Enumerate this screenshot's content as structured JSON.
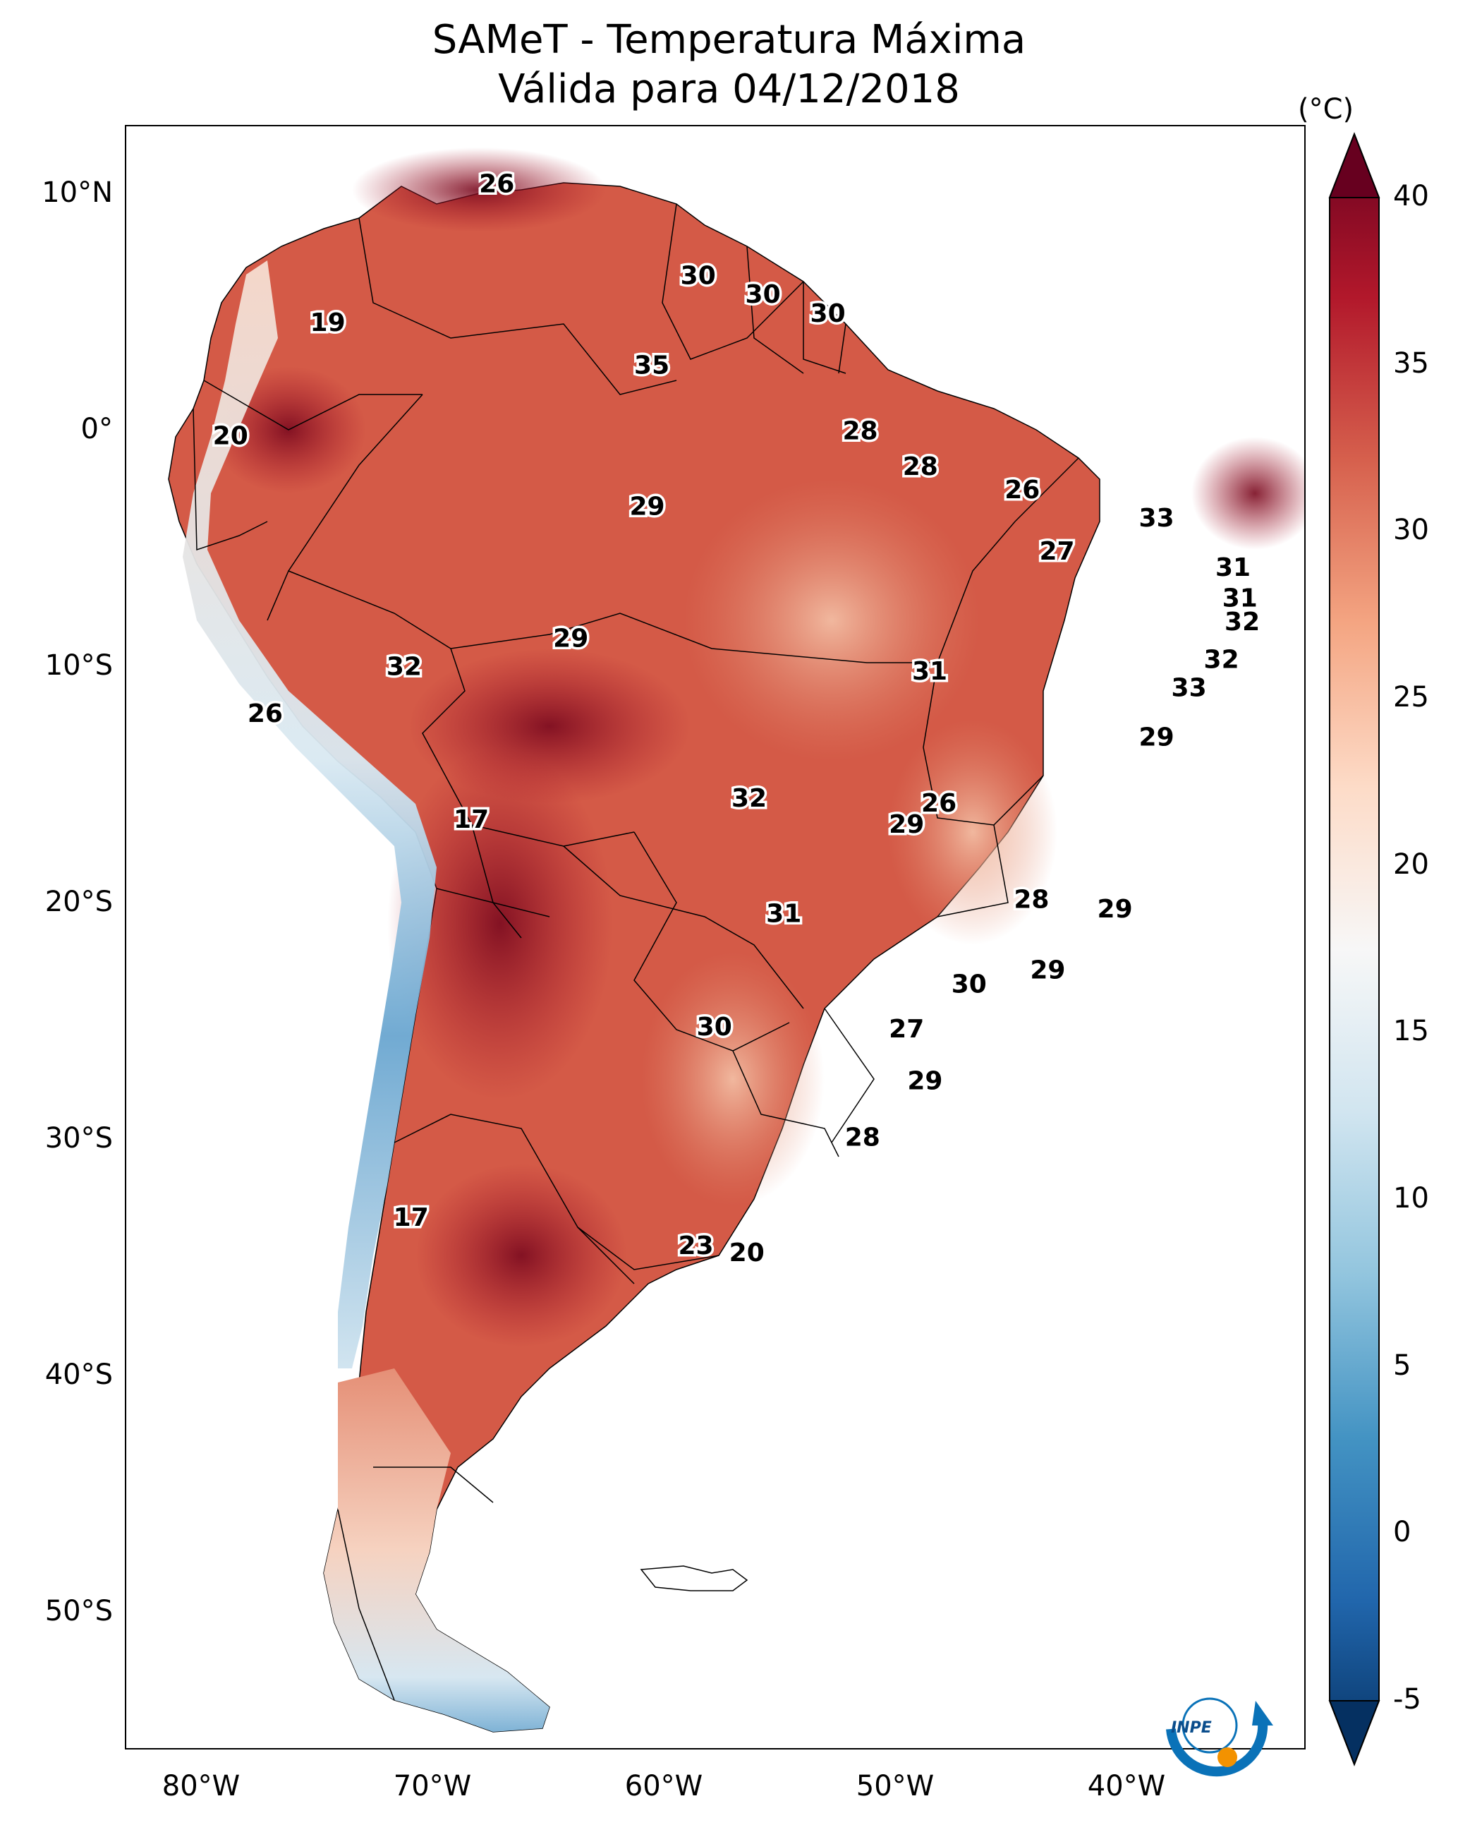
{
  "title": {
    "line1": "SAMeT - Temperatura Máxima",
    "line2": "Válida para 04/12/2018"
  },
  "map": {
    "region": "South America",
    "extent_lon": [
      -83,
      -32
    ],
    "extent_lat": [
      -56,
      13
    ],
    "lat_ticks": [
      "10°N",
      "0°",
      "10°S",
      "20°S",
      "30°S",
      "40°S",
      "50°S"
    ],
    "lon_ticks": [
      "80°W",
      "70°W",
      "60°W",
      "50°W",
      "40°W"
    ],
    "point_labels": [
      {
        "text": "26",
        "lon": -67.0,
        "lat": 10.5
      },
      {
        "text": "30",
        "lon": -58.3,
        "lat": 6.6
      },
      {
        "text": "30",
        "lon": -55.5,
        "lat": 5.8
      },
      {
        "text": "30",
        "lon": -52.7,
        "lat": 5.0
      },
      {
        "text": "19",
        "lon": -74.3,
        "lat": 4.6
      },
      {
        "text": "35",
        "lon": -60.3,
        "lat": 2.8
      },
      {
        "text": "28",
        "lon": -51.3,
        "lat": 0.0
      },
      {
        "text": "20",
        "lon": -78.5,
        "lat": -0.2
      },
      {
        "text": "28",
        "lon": -48.7,
        "lat": -1.5
      },
      {
        "text": "26",
        "lon": -44.3,
        "lat": -2.5
      },
      {
        "text": "29",
        "lon": -60.5,
        "lat": -3.2
      },
      {
        "text": "33",
        "lon": -38.5,
        "lat": -3.7
      },
      {
        "text": "27",
        "lon": -42.8,
        "lat": -5.1
      },
      {
        "text": "31",
        "lon": -35.2,
        "lat": -5.8
      },
      {
        "text": "31",
        "lon": -34.9,
        "lat": -7.1
      },
      {
        "text": "32",
        "lon": -34.8,
        "lat": -8.1
      },
      {
        "text": "29",
        "lon": -63.8,
        "lat": -8.8
      },
      {
        "text": "32",
        "lon": -71.0,
        "lat": -10.0
      },
      {
        "text": "32",
        "lon": -35.7,
        "lat": -9.7
      },
      {
        "text": "31",
        "lon": -48.3,
        "lat": -10.2
      },
      {
        "text": "33",
        "lon": -37.1,
        "lat": -10.9
      },
      {
        "text": "26",
        "lon": -77.0,
        "lat": -12.0
      },
      {
        "text": "29",
        "lon": -38.5,
        "lat": -13.0
      },
      {
        "text": "32",
        "lon": -56.1,
        "lat": -15.6
      },
      {
        "text": "26",
        "lon": -47.9,
        "lat": -15.8
      },
      {
        "text": "17",
        "lon": -68.1,
        "lat": -16.5
      },
      {
        "text": "29",
        "lon": -49.3,
        "lat": -16.7
      },
      {
        "text": "28",
        "lon": -43.9,
        "lat": -19.9
      },
      {
        "text": "29",
        "lon": -40.3,
        "lat": -20.3
      },
      {
        "text": "31",
        "lon": -54.6,
        "lat": -20.5
      },
      {
        "text": "29",
        "lon": -43.2,
        "lat": -22.9
      },
      {
        "text": "30",
        "lon": -46.6,
        "lat": -23.5
      },
      {
        "text": "30",
        "lon": -57.6,
        "lat": -25.3
      },
      {
        "text": "27",
        "lon": -49.3,
        "lat": -25.4
      },
      {
        "text": "29",
        "lon": -48.5,
        "lat": -27.6
      },
      {
        "text": "28",
        "lon": -51.2,
        "lat": -30.0
      },
      {
        "text": "17",
        "lon": -70.7,
        "lat": -33.4
      },
      {
        "text": "23",
        "lon": -58.4,
        "lat": -34.6
      },
      {
        "text": "20",
        "lon": -56.2,
        "lat": -34.9
      }
    ]
  },
  "colorbar": {
    "unit": "(°C)",
    "vmin": -5,
    "vmax": 40,
    "ticks": [
      "40",
      "35",
      "30",
      "25",
      "20",
      "15",
      "10",
      "5",
      "0",
      "-5"
    ],
    "colormap": [
      "#053061",
      "#2166ac",
      "#4393c3",
      "#92c5de",
      "#d1e5f0",
      "#f7f7f7",
      "#fddbc7",
      "#f4a582",
      "#d6604d",
      "#b2182b",
      "#67001f"
    ]
  },
  "logo": {
    "text": "INPE"
  }
}
